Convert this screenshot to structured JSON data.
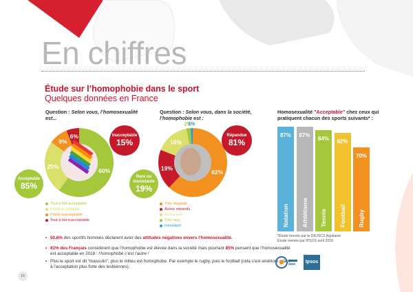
{
  "header": {
    "big_title": "En chiffres",
    "title": "Étude sur l’homophobie dans le sport",
    "subtitle": "Quelques données en France"
  },
  "chart_data": [
    {
      "type": "pie",
      "question_prefix": "Question : ",
      "question_italic": "Selon vous, l’homosexualité est...",
      "slices": [
        {
          "label": "Tout à fait acceptable",
          "value": 60,
          "display": "60%",
          "color": "#a5c73c"
        },
        {
          "label": "Plutôt acceptable",
          "value": 25,
          "display": "25%",
          "color": "#dbe06c"
        },
        {
          "label": "Plutôt inacceptable",
          "value": 9,
          "display": "9%",
          "color": "#f29120"
        },
        {
          "label": "Tout à fait inacceptable",
          "value": 6,
          "display": "6%",
          "color": "#c41a2b"
        }
      ],
      "badge_left": {
        "label": "Acceptable",
        "value": "85%",
        "color": "#a5c73c"
      },
      "badge_right": {
        "label": "Inacceptable",
        "value": "15%",
        "color": "#c41a2b"
      }
    },
    {
      "type": "pie",
      "question_prefix": "Question : ",
      "question_italic": "Selon vous, dans la société, l’homophobie est :",
      "slices": [
        {
          "label": "Très répandu",
          "value": 62,
          "display": "62%",
          "color": "#f29120"
        },
        {
          "label": "Assez répandu",
          "value": 19,
          "display": "19%",
          "color": "#c41a2b"
        },
        {
          "label": "Assez rare",
          "value": 16,
          "display": "16%",
          "color": "#dbe06c"
        },
        {
          "label": "Très rare",
          "value": 2,
          "display": "2%",
          "color": "#a5c73c"
        },
        {
          "label": "Inexistant",
          "value": 1,
          "display": "1%",
          "color": "#2a9ad6"
        }
      ],
      "badge_left": {
        "label": "Rare ou inexistante",
        "value": "19%",
        "color": "#a5c73c"
      },
      "badge_right": {
        "label": "Répandue",
        "value": "81%",
        "color": "#c41a2b"
      }
    },
    {
      "type": "bar",
      "title_prefix": "Homosexualité ",
      "title_highlight": "\"Acceptable\"",
      "title_suffix": " chez ceux qui pratiquent chacun des sports suivants* :",
      "categories": [
        "Natation",
        "Athlétisme",
        "Tennis",
        "Football",
        "Rugby"
      ],
      "values": [
        87,
        87,
        84,
        82,
        70
      ],
      "displays": [
        "87%",
        "87%",
        "84%",
        "82%",
        "70%"
      ],
      "colors": [
        "#5ab1d9",
        "#b7b7b7",
        "#a5c73c",
        "#f2c12e",
        "#f29120"
      ],
      "notes": [
        "*Étude menée par la DRJSCS Aquitaine",
        "Étude menée par IPSOS avril 2018"
      ]
    }
  ],
  "bullets": [
    {
      "parts": [
        {
          "t": "50,6%",
          "red": true
        },
        {
          "t": " des sportifs hommes déclarent avoir des "
        },
        {
          "t": "attitudes négatives envers l’homosexualité.",
          "red": true
        }
      ]
    },
    {
      "parts": [
        {
          "t": "81% des Français",
          "red": true
        },
        {
          "t": " considèrent que l’homophobie est élevée dans la société mais pourtant "
        },
        {
          "t": "85%",
          "red": true
        },
        {
          "t": " pensent que l’homosexualité est acceptable en 2018 : "
        },
        {
          "t": "l’homophobe c’est l’autre !",
          "italic": true
        }
      ]
    },
    {
      "parts": [
        {
          "t": "Plus le sport est dit “masculin”, plus le milieu est homophobe. Par exemple le rugby, puis le football (cela s’est amélioré grâce à l’acceptation plus forte des lesbiennes)."
        }
      ]
    }
  ],
  "footer": {
    "page": "16",
    "logo_right": "Ipsos"
  },
  "palette": {
    "accent_red": "#c8102e"
  }
}
